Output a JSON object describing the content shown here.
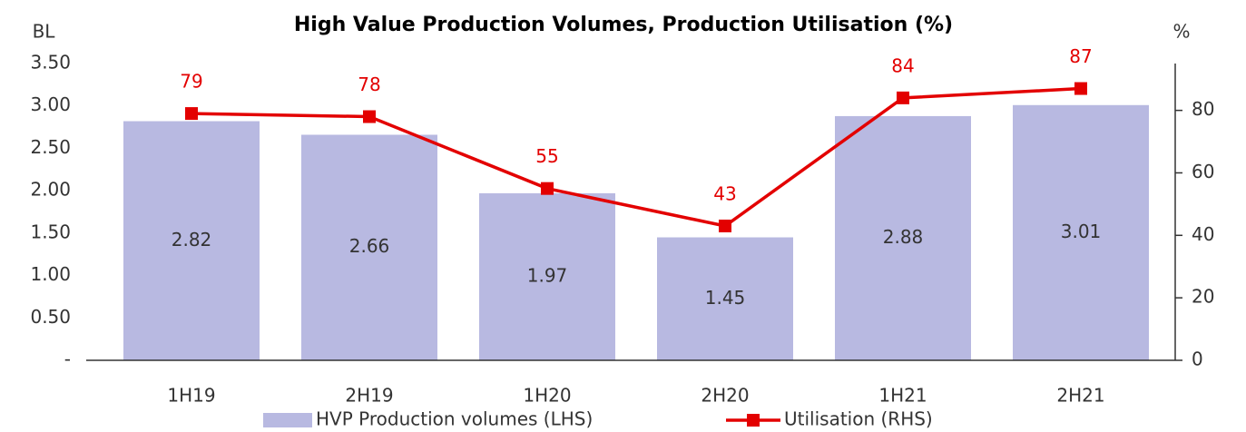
{
  "chart_data": {
    "type": "bar",
    "title": "High Value Production Volumes, Production Utilisation (%)",
    "y_label": "BL",
    "y2_label": "%",
    "categories": [
      "1H19",
      "2H19",
      "1H20",
      "2H20",
      "1H21",
      "2H21"
    ],
    "series": [
      {
        "name": "HVP Production volumes (LHS)",
        "color": "#b8b9e1",
        "type": "bar",
        "values": [
          2.82,
          2.66,
          1.97,
          1.45,
          2.88,
          3.01
        ]
      },
      {
        "name": "Utilisation (RHS)",
        "color": "#e30000",
        "type": "line",
        "axis": "y2",
        "values": [
          79,
          78,
          55,
          43,
          84,
          87
        ]
      }
    ],
    "ylim": [
      0,
      3.5
    ],
    "yticks": [
      {
        "value": 0,
        "label": "-"
      },
      {
        "value": 0.5,
        "label": "0.50"
      },
      {
        "value": 1,
        "label": "1.00"
      },
      {
        "value": 1.5,
        "label": "1.50"
      },
      {
        "value": 2,
        "label": "2.00"
      },
      {
        "value": 2.5,
        "label": "2.50"
      },
      {
        "value": 3,
        "label": "3.00"
      },
      {
        "value": 3.5,
        "label": "3.50"
      }
    ],
    "y2lim": [
      0,
      95
    ],
    "y2ticks": [
      0,
      20,
      40,
      60,
      80
    ],
    "grid": false
  }
}
